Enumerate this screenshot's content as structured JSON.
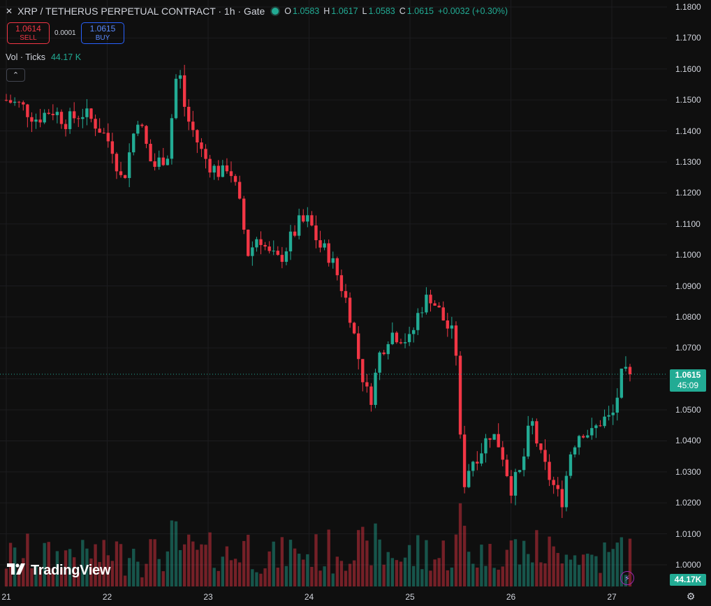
{
  "header": {
    "close_glyph": "✕",
    "title": "XRP / TETHERUS PERPETUAL CONTRACT · 1h · Gate",
    "ohlc": [
      {
        "key": "O",
        "value": "1.0583"
      },
      {
        "key": "H",
        "value": "1.0617"
      },
      {
        "key": "L",
        "value": "1.0583"
      },
      {
        "key": "C",
        "value": "1.0615"
      }
    ],
    "change": "+0.0032 (+0.30%)"
  },
  "trade": {
    "sell_price": "1.0614",
    "sell_label": "SELL",
    "spread": "0.0001",
    "buy_price": "1.0615",
    "buy_label": "BUY"
  },
  "volume_legend": {
    "label": "Vol · Ticks",
    "value": "44.17 K"
  },
  "collapse_glyph": "⌃",
  "last_price_tag": {
    "price": "1.0615",
    "countdown": "45:09"
  },
  "volume_tag": "44.17K",
  "logo_text": "TradingView",
  "icons": {
    "flash": "lightning-icon",
    "settings": "gear-icon"
  },
  "colors": {
    "up": "#22ab94",
    "down": "#f23645",
    "background": "#0f0f0f"
  },
  "chart_data": {
    "type": "candlestick",
    "y_ticks": [
      "1.1800",
      "1.1700",
      "1.1600",
      "1.1500",
      "1.1400",
      "1.1300",
      "1.1200",
      "1.1100",
      "1.1000",
      "1.0900",
      "1.0800",
      "1.0700",
      "1.0600",
      "1.0500",
      "1.0400",
      "1.0300",
      "1.0200",
      "1.0100",
      "1.0000"
    ],
    "x_ticks": [
      "21",
      "22",
      "23",
      "24",
      "25",
      "26",
      "27"
    ],
    "ylim": [
      0.998,
      1.18
    ],
    "close_points": [
      [
        21.0,
        1.15
      ],
      [
        21.15,
        1.148
      ],
      [
        21.3,
        1.144
      ],
      [
        21.45,
        1.147
      ],
      [
        21.6,
        1.143
      ],
      [
        21.75,
        1.146
      ],
      [
        21.9,
        1.142
      ],
      [
        22.05,
        1.135
      ],
      [
        22.15,
        1.123
      ],
      [
        22.2,
        1.13
      ],
      [
        22.3,
        1.145
      ],
      [
        22.45,
        1.128
      ],
      [
        22.6,
        1.133
      ],
      [
        22.7,
        1.162
      ],
      [
        22.78,
        1.145
      ],
      [
        22.85,
        1.14
      ],
      [
        22.95,
        1.132
      ],
      [
        23.05,
        1.128
      ],
      [
        23.15,
        1.126
      ],
      [
        23.2,
        1.13
      ],
      [
        23.3,
        1.118
      ],
      [
        23.4,
        1.1
      ],
      [
        23.5,
        1.107
      ],
      [
        23.6,
        1.1
      ],
      [
        23.7,
        1.098
      ],
      [
        23.8,
        1.104
      ],
      [
        23.9,
        1.11
      ],
      [
        24.0,
        1.111
      ],
      [
        24.1,
        1.103
      ],
      [
        24.2,
        1.1
      ],
      [
        24.3,
        1.092
      ],
      [
        24.4,
        1.082
      ],
      [
        24.5,
        1.065
      ],
      [
        24.6,
        1.052
      ],
      [
        24.7,
        1.068
      ],
      [
        24.8,
        1.075
      ],
      [
        24.9,
        1.074
      ],
      [
        25.0,
        1.072
      ],
      [
        25.1,
        1.083
      ],
      [
        25.2,
        1.087
      ],
      [
        25.3,
        1.081
      ],
      [
        25.4,
        1.075
      ],
      [
        25.45,
        1.073
      ],
      [
        25.52,
        1.025
      ],
      [
        25.6,
        1.033
      ],
      [
        25.7,
        1.037
      ],
      [
        25.8,
        1.043
      ],
      [
        25.9,
        1.038
      ],
      [
        26.0,
        1.025
      ],
      [
        26.1,
        1.03
      ],
      [
        26.2,
        1.047
      ],
      [
        26.3,
        1.034
      ],
      [
        26.4,
        1.027
      ],
      [
        26.5,
        1.02
      ],
      [
        26.6,
        1.038
      ],
      [
        26.7,
        1.044
      ],
      [
        26.8,
        1.042
      ],
      [
        26.9,
        1.047
      ],
      [
        27.0,
        1.047
      ],
      [
        27.1,
        1.061
      ]
    ]
  }
}
